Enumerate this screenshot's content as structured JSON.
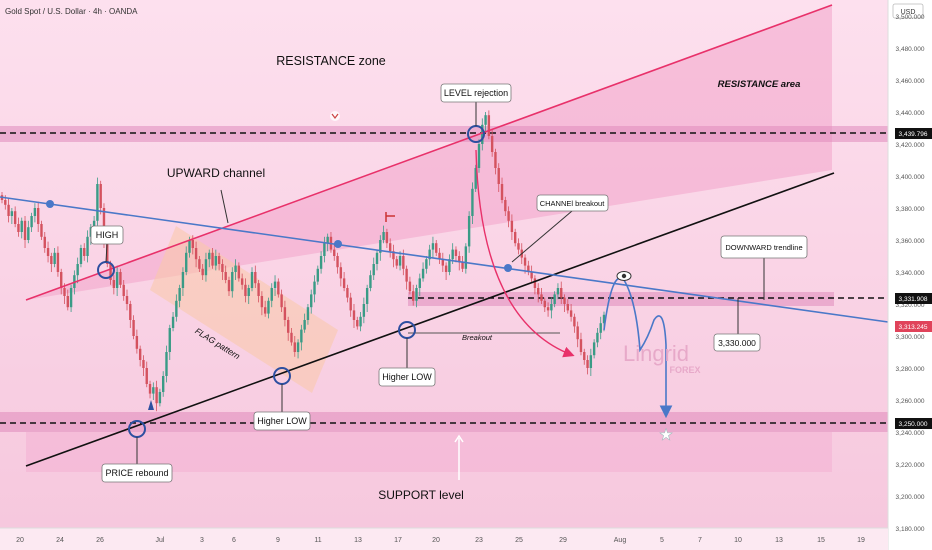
{
  "header": {
    "title": "Gold Spot / U.S. Dollar · 4h · OANDA",
    "currency": "USD"
  },
  "watermark": {
    "brand": "Lingrid",
    "sub": "FOREX"
  },
  "colors": {
    "bg": "#fbd3e6",
    "zone": "#e79bc4",
    "up": "#3a9b86",
    "down": "#d4525f",
    "resistance_line": "#e8316a",
    "trend_blue": "#4a78c8",
    "channel_black": "#111111",
    "price_tag": "#e0435a",
    "level_tag": "#111111"
  },
  "axis": {
    "y_ticks": [
      "3,500.000",
      "3,480.000",
      "3,460.000",
      "3,440.000",
      "3,420.000",
      "3,400.000",
      "3,380.000",
      "3,360.000",
      "3,340.000",
      "3,320.000",
      "3,300.000",
      "3,280.000",
      "3,260.000",
      "3,240.000",
      "3,220.000",
      "3,200.000",
      "3,180.000"
    ],
    "x_ticks": [
      "20",
      "24",
      "26",
      "Jul",
      "3",
      "6",
      "9",
      "11",
      "13",
      "17",
      "20",
      "23",
      "25",
      "29",
      "Aug",
      "5",
      "7",
      "10",
      "13",
      "15",
      "19"
    ]
  },
  "price_tags": {
    "resistance": "3,439.796",
    "level": "3,331.908",
    "current": "3,313.245",
    "support": "3,250.000"
  },
  "annotations": {
    "resistance_zone": "RESISTANCE zone",
    "resistance_area": "RESISTANCE area",
    "level_rejection": "LEVEL rejection",
    "upward_channel": "UPWARD channel",
    "channel_breakout": "CHANNEl breakout",
    "downward_trendline": "DOWNWARD trendline",
    "high": "HIGH",
    "flag_pattern": "FLAG pattern",
    "breakout": "Breakout",
    "higher_low_1": "Higher LOW",
    "higher_low_2": "Higher LOW",
    "price_rebound": "PRICE rebound",
    "support_level": "SUPPORT level",
    "target_box": "3,330.000"
  },
  "chart_data": {
    "type": "candlestick",
    "symbol": "Gold Spot / U.S. Dollar",
    "timeframe": "4h",
    "ylim": [
      3180,
      3510
    ],
    "levels": {
      "resistance": 3439.796,
      "level": 3331.908,
      "current": 3313.245,
      "support": 3250.0,
      "target": 3330.0
    },
    "closes": [
      3385,
      3382,
      3375,
      3378,
      3370,
      3365,
      3372,
      3360,
      3368,
      3375,
      3380,
      3370,
      3362,
      3355,
      3350,
      3345,
      3352,
      3340,
      3330,
      3325,
      3318,
      3330,
      3338,
      3345,
      3355,
      3350,
      3362,
      3368,
      3372,
      3395,
      3380,
      3360,
      3345,
      3335,
      3330,
      3340,
      3332,
      3325,
      3320,
      3310,
      3300,
      3292,
      3285,
      3280,
      3270,
      3264,
      3268,
      3258,
      3265,
      3275,
      3290,
      3305,
      3312,
      3322,
      3330,
      3340,
      3352,
      3360,
      3355,
      3348,
      3342,
      3338,
      3348,
      3352,
      3344,
      3350,
      3345,
      3340,
      3335,
      3328,
      3340,
      3344,
      3336,
      3332,
      3325,
      3330,
      3340,
      3333,
      3325,
      3318,
      3314,
      3322,
      3330,
      3334,
      3326,
      3318,
      3310,
      3302,
      3296,
      3290,
      3296,
      3304,
      3310,
      3318,
      3326,
      3334,
      3342,
      3350,
      3358,
      3362,
      3354,
      3350,
      3343,
      3336,
      3330,
      3324,
      3316,
      3310,
      3306,
      3312,
      3320,
      3330,
      3338,
      3345,
      3352,
      3360,
      3365,
      3358,
      3353,
      3348,
      3344,
      3350,
      3342,
      3334,
      3328,
      3322,
      3330,
      3336,
      3342,
      3348,
      3354,
      3358,
      3352,
      3348,
      3344,
      3340,
      3348,
      3354,
      3350,
      3346,
      3342,
      3356,
      3375,
      3392,
      3405,
      3420,
      3432,
      3438,
      3425,
      3415,
      3405,
      3395,
      3385,
      3378,
      3372,
      3365,
      3358,
      3354,
      3349,
      3344,
      3340,
      3336,
      3330,
      3326,
      3322,
      3318,
      3316,
      3320,
      3326,
      3330,
      3324,
      3320,
      3316,
      3312,
      3306,
      3298,
      3290,
      3285,
      3280,
      3288,
      3296,
      3302,
      3308,
      3313.245
    ]
  }
}
